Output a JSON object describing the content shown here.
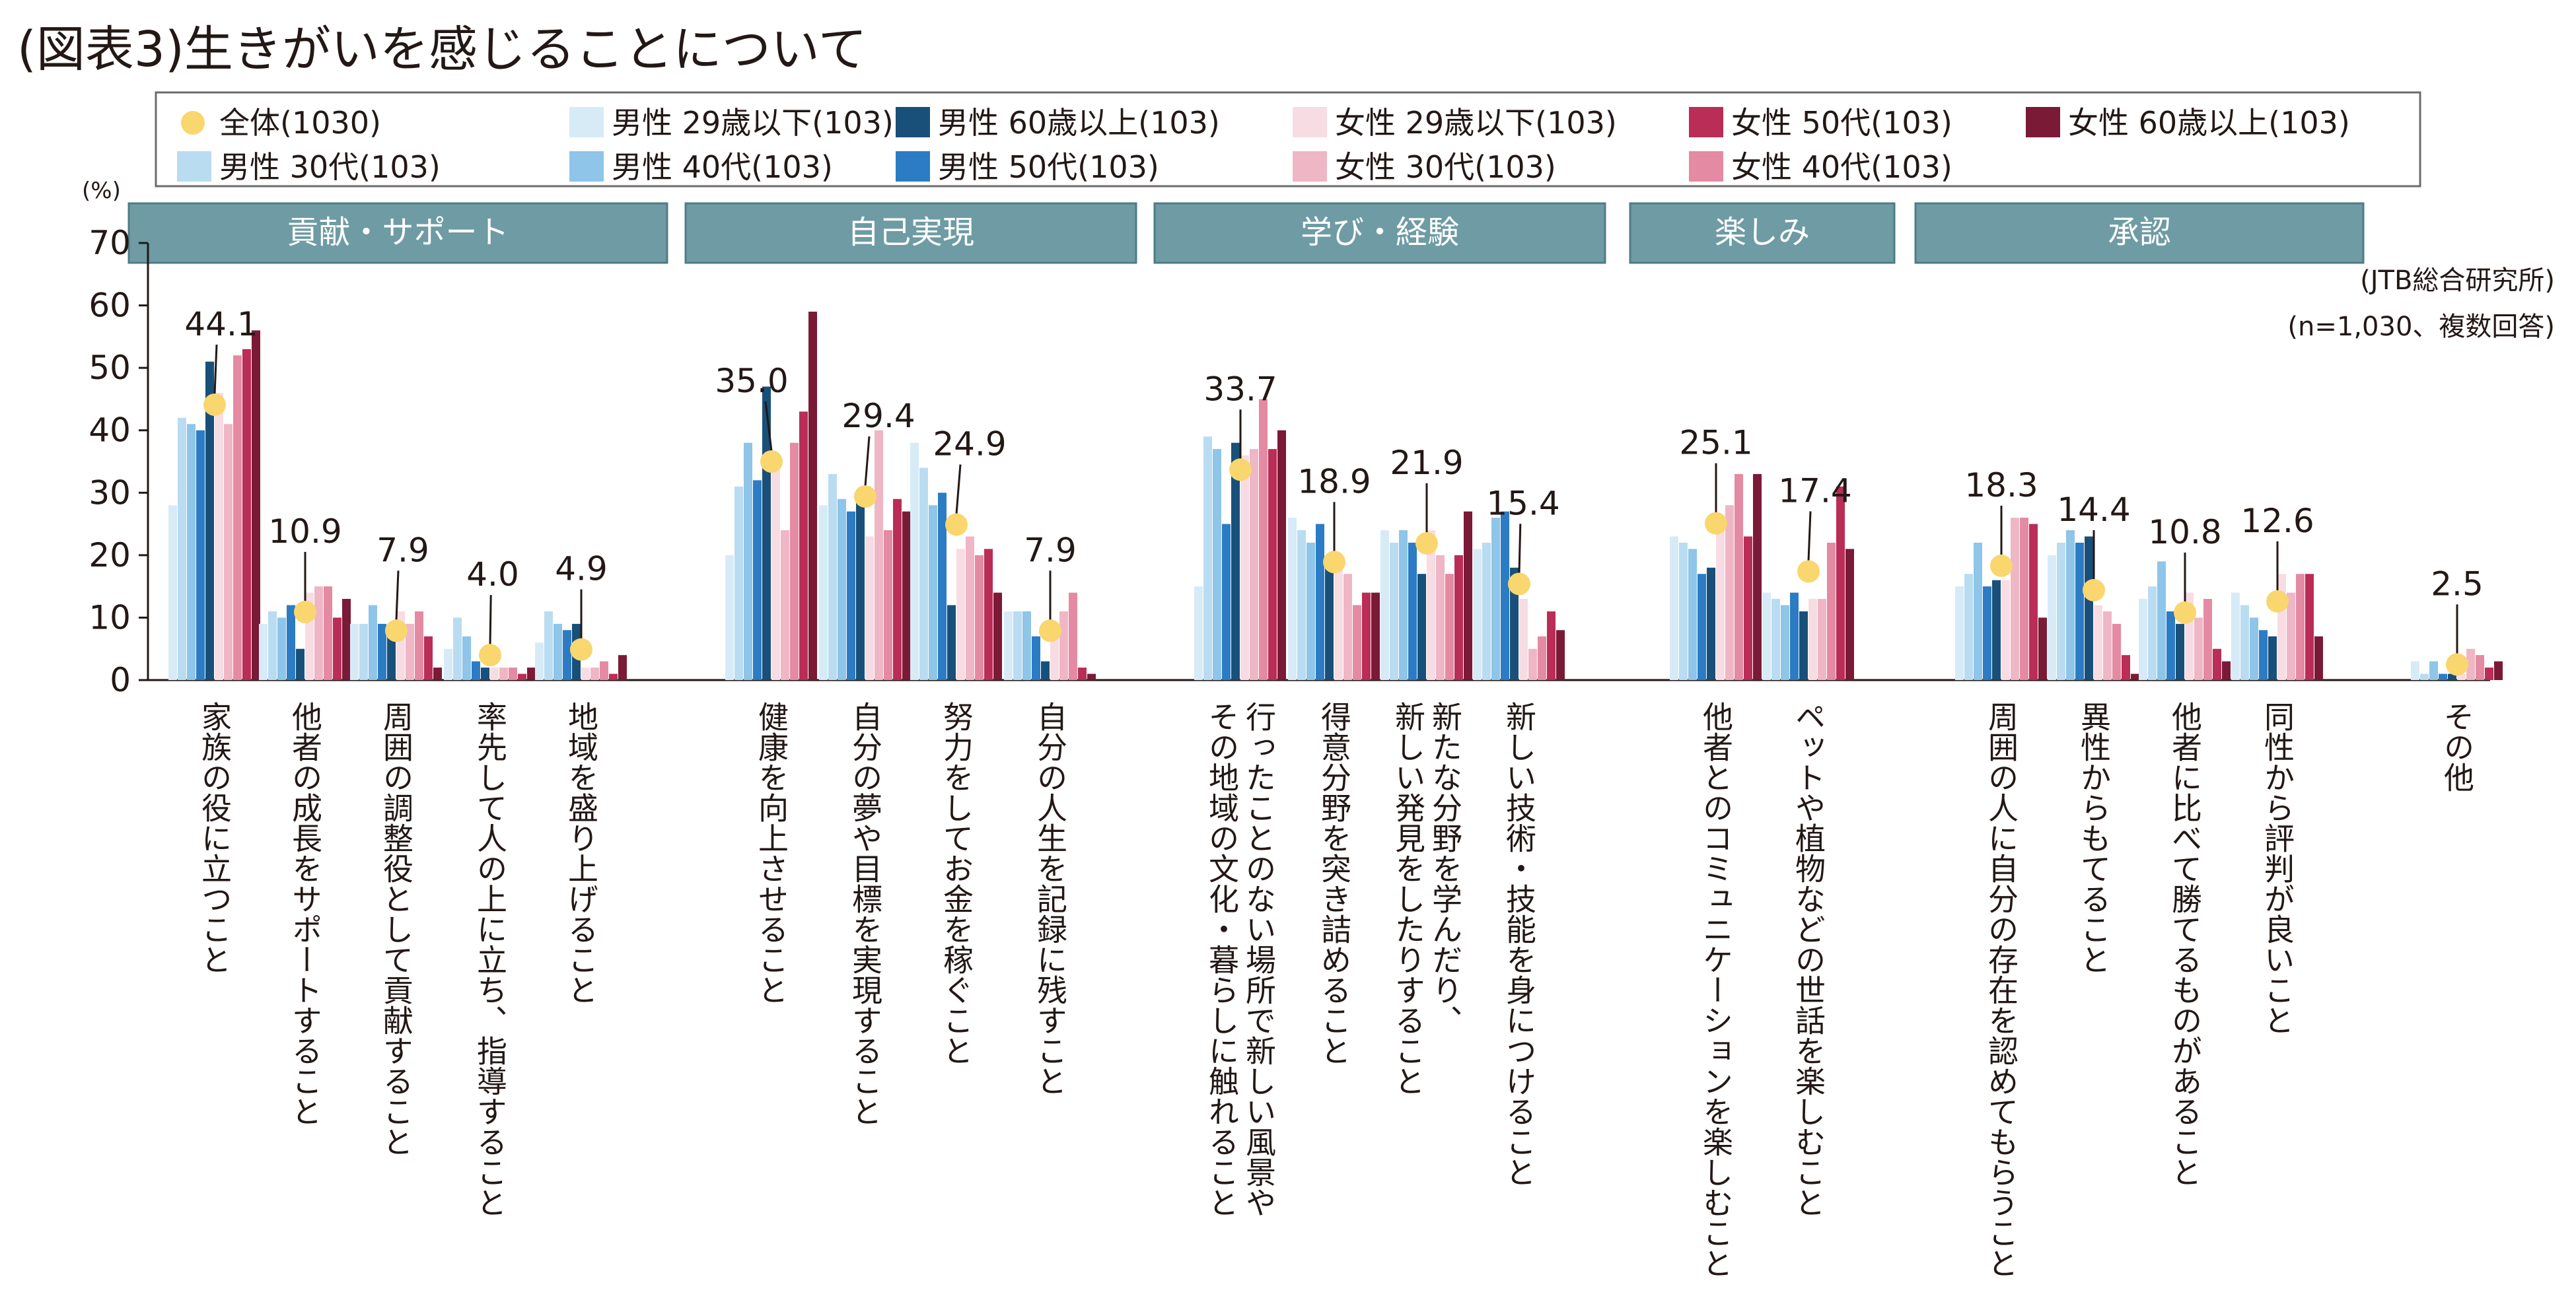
{
  "chart_data": {
    "type": "bar",
    "title": "(図表3)生きがいを感じることについて",
    "ylabel": "(%)",
    "ylim": [
      0,
      70
    ],
    "yticks": [
      0,
      10,
      20,
      30,
      40,
      50,
      60,
      70
    ],
    "grid": false,
    "legend_position": "top",
    "source_note": [
      "(JTB総合研究所)",
      "(n=1,030、複数回答)"
    ],
    "total_series": {
      "name": "全体(1030)",
      "color": "#f9d66e",
      "values": [
        44.1,
        10.9,
        7.9,
        4.0,
        4.9,
        35.0,
        29.4,
        24.9,
        7.9,
        33.7,
        18.9,
        21.9,
        15.4,
        25.1,
        17.4,
        18.3,
        14.4,
        10.8,
        12.6,
        2.5
      ],
      "value_labels": [
        "44.1",
        "10.9",
        "7.9",
        "4.0",
        "4.9",
        "35.0",
        "29.4",
        "24.9",
        "7.9",
        "33.7",
        "18.9",
        "21.9",
        "15.4",
        "25.1",
        "17.4",
        "18.3",
        "14.4",
        "10.8",
        "12.6",
        "2.5"
      ]
    },
    "series": [
      {
        "name": "男性 29歳以下(103)",
        "color": "#d7ebf7",
        "values": [
          28,
          9,
          9,
          5,
          6,
          20,
          28,
          38,
          11,
          15,
          26,
          24,
          21,
          23,
          14,
          15,
          20,
          13,
          14,
          3
        ]
      },
      {
        "name": "男性 30代(103)",
        "color": "#b9dcf1",
        "values": [
          42,
          11,
          9,
          10,
          11,
          31,
          33,
          34,
          11,
          39,
          24,
          22,
          22,
          22,
          13,
          17,
          22,
          15,
          12,
          1
        ]
      },
      {
        "name": "男性 40代(103)",
        "color": "#8ec5e8",
        "values": [
          41,
          10,
          12,
          7,
          9,
          38,
          29,
          28,
          11,
          37,
          22,
          24,
          26,
          21,
          12,
          22,
          24,
          19,
          10,
          3
        ]
      },
      {
        "name": "男性 50代(103)",
        "color": "#2b7cc4",
        "values": [
          40,
          12,
          9,
          3,
          8,
          32,
          27,
          30,
          7,
          25,
          25,
          22,
          27,
          17,
          14,
          15,
          22,
          11,
          8,
          1
        ]
      },
      {
        "name": "男性 60歳以上(103)",
        "color": "#18507a",
        "values": [
          51,
          5,
          8,
          2,
          9,
          47,
          29,
          12,
          3,
          38,
          18,
          17,
          18,
          18,
          11,
          16,
          23,
          9,
          7,
          1
        ]
      },
      {
        "name": "女性 29歳以下(103)",
        "color": "#f8dce3",
        "values": [
          46,
          14,
          11,
          2,
          2,
          34,
          23,
          21,
          9,
          36,
          20,
          24,
          13,
          25,
          13,
          16,
          12,
          14,
          17,
          1
        ]
      },
      {
        "name": "女性 30代(103)",
        "color": "#efb6c6",
        "values": [
          41,
          15,
          9,
          2,
          2,
          24,
          40,
          23,
          11,
          37,
          17,
          20,
          5,
          28,
          13,
          26,
          11,
          10,
          14,
          5
        ]
      },
      {
        "name": "女性 40代(103)",
        "color": "#e48aa2",
        "values": [
          52,
          15,
          11,
          2,
          3,
          38,
          24,
          20,
          14,
          45,
          12,
          17,
          7,
          33,
          22,
          26,
          9,
          13,
          17,
          4
        ]
      },
      {
        "name": "女性 50代(103)",
        "color": "#b92d57",
        "values": [
          53,
          10,
          7,
          1,
          1,
          43,
          29,
          21,
          2,
          37,
          14,
          20,
          11,
          23,
          31,
          25,
          4,
          5,
          17,
          2
        ]
      },
      {
        "name": "女性 60歳以上(103)",
        "color": "#7a1a36",
        "values": [
          56,
          13,
          2,
          2,
          4,
          59,
          27,
          14,
          1,
          40,
          14,
          27,
          8,
          33,
          21,
          10,
          1,
          3,
          7,
          3
        ]
      }
    ],
    "categories": [
      "家族の役に立つこと",
      "他者の成長をサポートすること",
      "周囲の調整役として貢献すること",
      "率先して人の上に立ち、指導すること",
      "地域を盛り上げること",
      "健康を向上させること",
      "自分の夢や目標を実現すること",
      "努力をしてお金を稼ぐこと",
      "自分の人生を記録に残すこと",
      [
        "行ったことのない場所で新しい風景や",
        "その地域の文化・暮らしに触れること"
      ],
      "得意分野を突き詰めること",
      [
        "新たな分野を学んだり、",
        "新しい発見をしたりすること"
      ],
      "新しい技術・技能を身につけること",
      "他者とのコミュニケーションを楽しむこと",
      "ペットや植物などの世話を楽しむこと",
      "周囲の人に自分の存在を認めてもらうこと",
      "異性からもてること",
      "他者に比べて勝てるものがあること",
      "同性から評判が良いこと",
      "その他"
    ],
    "groups": [
      {
        "label": "貢献・サポート",
        "first": 0,
        "last": 4
      },
      {
        "label": "自己実現",
        "first": 5,
        "last": 8
      },
      {
        "label": "学び・経験",
        "first": 9,
        "last": 12
      },
      {
        "label": "楽しみ",
        "first": 13,
        "last": 14
      },
      {
        "label": "承認",
        "first": 15,
        "last": 18
      }
    ],
    "colors": {
      "group_box": "#6e9ba4",
      "axis": "#231815"
    }
  }
}
